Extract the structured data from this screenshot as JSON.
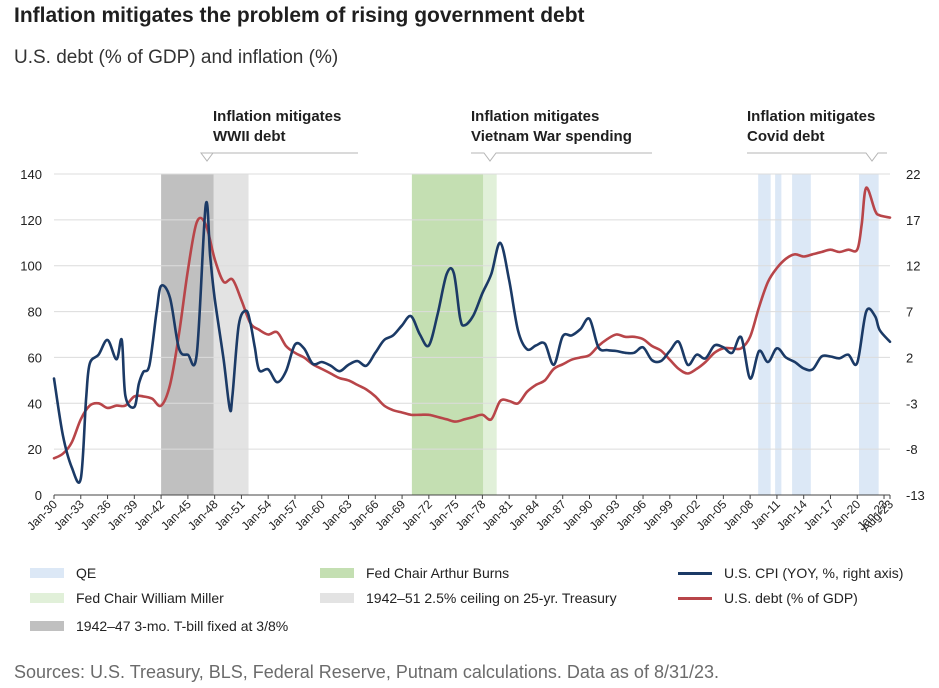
{
  "title": "Inflation mitigates the problem of rising government debt",
  "subtitle": "U.S. debt (% of GDP) and inflation (%)",
  "source": "Sources: U.S. Treasury, BLS, Federal Reserve, Putnam calculations. Data as of 8/31/23.",
  "annotations": [
    {
      "line1": "Inflation mitigates",
      "line2": "WWII debt"
    },
    {
      "line1": "Inflation mitigates",
      "line2": "Vietnam War spending"
    },
    {
      "line1": "Inflation mitigates",
      "line2": "Covid debt"
    }
  ],
  "legend": {
    "qe": "QE",
    "miller": "Fed Chair William Miller",
    "tbill": "1942–47 3-mo. T-bill fixed at 3/8%",
    "burns": "Fed Chair Arthur Burns",
    "ceiling": "1942–51 2.5% ceiling on 25-yr. Treasury",
    "cpi": "U.S. CPI (YOY, %, right axis)",
    "debt": "U.S. debt (% of GDP)"
  },
  "colors": {
    "cpi": "#1b3a66",
    "debt": "#b84549",
    "qe": "#dce8f6",
    "miller": "#e1f0d9",
    "burns": "#c4dfb2",
    "tbill": "#c0c0c0",
    "ceiling": "#e3e3e3"
  },
  "chart_data": {
    "type": "line",
    "x_range": [
      1930,
      2023.67
    ],
    "x_tick_labels": [
      "Jan-30",
      "Jan-33",
      "Jan-36",
      "Jan-39",
      "Jan-42",
      "Jan-45",
      "Jan-48",
      "Jan-51",
      "Jan-54",
      "Jan-57",
      "Jan-60",
      "Jan-63",
      "Jan-66",
      "Jan-69",
      "Jan-72",
      "Jan-75",
      "Jan-78",
      "Jan-81",
      "Jan-84",
      "Jan-87",
      "Jan-90",
      "Jan-93",
      "Jan-96",
      "Jan-99",
      "Jan-02",
      "Jan-05",
      "Jan-08",
      "Jan-11",
      "Jan-14",
      "Jan-17",
      "Jan-20",
      "Jan-23",
      "Aug-23"
    ],
    "y_left": {
      "min": 0,
      "max": 140,
      "ticks": [
        0,
        20,
        40,
        60,
        80,
        100,
        120,
        140
      ]
    },
    "y_right": {
      "min": -13,
      "max": 22,
      "ticks": [
        -13,
        -8,
        -3,
        2,
        7,
        12,
        17,
        22
      ]
    },
    "shaded_periods": [
      {
        "kind": "tbill",
        "start": 1942,
        "end": 1947.9
      },
      {
        "kind": "ceiling",
        "start": 1947.9,
        "end": 1951.8
      },
      {
        "kind": "burns",
        "start": 1970.1,
        "end": 1978.1
      },
      {
        "kind": "miller",
        "start": 1978.1,
        "end": 1979.6
      },
      {
        "kind": "qe",
        "start": 2008.9,
        "end": 2010.3
      },
      {
        "kind": "qe",
        "start": 2010.8,
        "end": 2011.5
      },
      {
        "kind": "qe",
        "start": 2012.7,
        "end": 2014.8
      },
      {
        "kind": "qe",
        "start": 2020.2,
        "end": 2022.4
      }
    ],
    "series": [
      {
        "name": "U.S. CPI (YOY, %, right axis)",
        "axis": "right",
        "points": [
          [
            1930,
            -0.3
          ],
          [
            1931,
            -6.5
          ],
          [
            1932,
            -10
          ],
          [
            1933,
            -11.2
          ],
          [
            1933.6,
            -2.5
          ],
          [
            1934,
            1.3
          ],
          [
            1935,
            2.3
          ],
          [
            1936,
            3.9
          ],
          [
            1937,
            1.8
          ],
          [
            1937.6,
            3.9
          ],
          [
            1938,
            -2.2
          ],
          [
            1939,
            -3.4
          ],
          [
            1939.5,
            -0.9
          ],
          [
            1940,
            0.4
          ],
          [
            1940.7,
            1.2
          ],
          [
            1941.5,
            7
          ],
          [
            1942,
            9.8
          ],
          [
            1943,
            8.5
          ],
          [
            1944,
            3
          ],
          [
            1945,
            2.3
          ],
          [
            1946,
            2.4
          ],
          [
            1947,
            18.6
          ],
          [
            1947.5,
            13
          ],
          [
            1948,
            8.5
          ],
          [
            1949,
            1.8
          ],
          [
            1949.7,
            -3.6
          ],
          [
            1950,
            -2.1
          ],
          [
            1950.7,
            5.5
          ],
          [
            1951.5,
            7.1
          ],
          [
            1952,
            5.8
          ],
          [
            1952.5,
            3.1
          ],
          [
            1953,
            0.6
          ],
          [
            1954,
            0.7
          ],
          [
            1955,
            -0.7
          ],
          [
            1956,
            0.5
          ],
          [
            1957,
            3.4
          ],
          [
            1958,
            3
          ],
          [
            1959,
            1.3
          ],
          [
            1960,
            1.5
          ],
          [
            1961,
            1.1
          ],
          [
            1962,
            0.5
          ],
          [
            1963,
            1.2
          ],
          [
            1964,
            1.6
          ],
          [
            1965,
            1.1
          ],
          [
            1966,
            2.5
          ],
          [
            1967,
            3.9
          ],
          [
            1968,
            4.4
          ],
          [
            1969,
            5.5
          ],
          [
            1970,
            6.5
          ],
          [
            1971,
            4.5
          ],
          [
            1972,
            3.3
          ],
          [
            1973,
            6.8
          ],
          [
            1974,
            11.1
          ],
          [
            1974.8,
            11.2
          ],
          [
            1975.5,
            6.3
          ],
          [
            1976,
            5.5
          ],
          [
            1977,
            6.6
          ],
          [
            1978,
            9
          ],
          [
            1979,
            11.1
          ],
          [
            1980,
            14.5
          ],
          [
            1981,
            10.4
          ],
          [
            1982,
            4.9
          ],
          [
            1983,
            2.9
          ],
          [
            1984,
            3.3
          ],
          [
            1985,
            3.5
          ],
          [
            1986,
            1.2
          ],
          [
            1987,
            4.3
          ],
          [
            1988,
            4.4
          ],
          [
            1989,
            5.1
          ],
          [
            1990,
            6.2
          ],
          [
            1991,
            3.1
          ],
          [
            1992,
            2.8
          ],
          [
            1993,
            2.7
          ],
          [
            1994,
            2.5
          ],
          [
            1995,
            2.5
          ],
          [
            1996,
            3.1
          ],
          [
            1997,
            1.7
          ],
          [
            1998,
            1.6
          ],
          [
            1999,
            2.7
          ],
          [
            2000,
            3.7
          ],
          [
            2001,
            1.2
          ],
          [
            2002,
            2.3
          ],
          [
            2003,
            1.9
          ],
          [
            2004,
            3.3
          ],
          [
            2005,
            3.1
          ],
          [
            2006,
            2.5
          ],
          [
            2007,
            4.2
          ],
          [
            2008,
            -0.3
          ],
          [
            2009,
            2.7
          ],
          [
            2010,
            1.5
          ],
          [
            2011,
            3
          ],
          [
            2012,
            2
          ],
          [
            2013,
            1.5
          ],
          [
            2014,
            0.8
          ],
          [
            2015,
            0.7
          ],
          [
            2016,
            2.1
          ],
          [
            2017,
            2.1
          ],
          [
            2018,
            1.9
          ],
          [
            2019,
            2.3
          ],
          [
            2020,
            1.4
          ],
          [
            2021,
            7
          ],
          [
            2022,
            6.5
          ],
          [
            2022.5,
            5
          ],
          [
            2023.67,
            3.7
          ]
        ]
      },
      {
        "name": "U.S. debt (% of GDP)",
        "axis": "left",
        "points": [
          [
            1930,
            16
          ],
          [
            1931,
            18
          ],
          [
            1932,
            23
          ],
          [
            1933,
            33
          ],
          [
            1934,
            39
          ],
          [
            1935,
            40
          ],
          [
            1936,
            38
          ],
          [
            1937,
            39
          ],
          [
            1938,
            39
          ],
          [
            1939,
            43
          ],
          [
            1940,
            43
          ],
          [
            1941,
            42
          ],
          [
            1942,
            39
          ],
          [
            1943,
            48
          ],
          [
            1944,
            70
          ],
          [
            1945,
            98
          ],
          [
            1946,
            119
          ],
          [
            1947,
            118
          ],
          [
            1948,
            103
          ],
          [
            1949,
            93
          ],
          [
            1950,
            94
          ],
          [
            1951,
            85
          ],
          [
            1952,
            75
          ],
          [
            1953,
            72
          ],
          [
            1954,
            70
          ],
          [
            1955,
            71
          ],
          [
            1956,
            65
          ],
          [
            1957,
            62
          ],
          [
            1958,
            60
          ],
          [
            1959,
            57
          ],
          [
            1960,
            55
          ],
          [
            1961,
            53
          ],
          [
            1962,
            51
          ],
          [
            1963,
            50
          ],
          [
            1964,
            48
          ],
          [
            1965,
            46
          ],
          [
            1966,
            43
          ],
          [
            1967,
            39
          ],
          [
            1968,
            37
          ],
          [
            1969,
            36
          ],
          [
            1970,
            35
          ],
          [
            1971,
            35
          ],
          [
            1972,
            35
          ],
          [
            1973,
            34
          ],
          [
            1974,
            33
          ],
          [
            1975,
            32
          ],
          [
            1976,
            33
          ],
          [
            1977,
            34
          ],
          [
            1978,
            35
          ],
          [
            1979,
            33
          ],
          [
            1980,
            41
          ],
          [
            1981,
            41
          ],
          [
            1982,
            40
          ],
          [
            1983,
            45
          ],
          [
            1984,
            48
          ],
          [
            1985,
            50
          ],
          [
            1986,
            55
          ],
          [
            1987,
            57
          ],
          [
            1988,
            59
          ],
          [
            1989,
            60
          ],
          [
            1990,
            61
          ],
          [
            1991,
            65
          ],
          [
            1992,
            68
          ],
          [
            1993,
            70
          ],
          [
            1994,
            69
          ],
          [
            1995,
            69
          ],
          [
            1996,
            68
          ],
          [
            1997,
            65
          ],
          [
            1998,
            63
          ],
          [
            1999,
            59
          ],
          [
            2000,
            55
          ],
          [
            2001,
            53
          ],
          [
            2002,
            55
          ],
          [
            2003,
            58
          ],
          [
            2004,
            62
          ],
          [
            2005,
            64
          ],
          [
            2006,
            64
          ],
          [
            2007,
            64
          ],
          [
            2008,
            69
          ],
          [
            2009,
            82
          ],
          [
            2010,
            93
          ],
          [
            2011,
            99
          ],
          [
            2012,
            103
          ],
          [
            2013,
            105
          ],
          [
            2014,
            104
          ],
          [
            2015,
            105
          ],
          [
            2016,
            106
          ],
          [
            2017,
            107
          ],
          [
            2018,
            106
          ],
          [
            2019,
            107
          ],
          [
            2020,
            107
          ],
          [
            2020.5,
            118
          ],
          [
            2021,
            134
          ],
          [
            2022,
            124
          ],
          [
            2022.5,
            122
          ],
          [
            2023.67,
            121
          ]
        ]
      }
    ]
  }
}
